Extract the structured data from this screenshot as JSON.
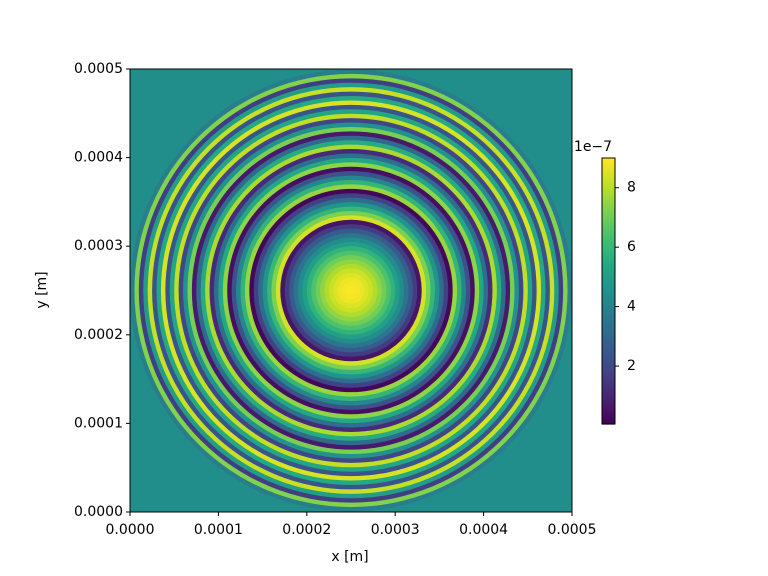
{
  "chart_data": {
    "type": "heatmap",
    "xlabel": "x [m]",
    "ylabel": "y [m]",
    "xlim": [
      0,
      0.0005
    ],
    "ylim": [
      0,
      0.0005
    ],
    "xticks": [
      {
        "value": 0,
        "label": "0.0000"
      },
      {
        "value": 0.0001,
        "label": "0.0001"
      },
      {
        "value": 0.0002,
        "label": "0.0002"
      },
      {
        "value": 0.0003,
        "label": "0.0003"
      },
      {
        "value": 0.0004,
        "label": "0.0004"
      },
      {
        "value": 0.0005,
        "label": "0.0005"
      }
    ],
    "yticks": [
      {
        "value": 0,
        "label": "0.0000"
      },
      {
        "value": 0.0001,
        "label": "0.0001"
      },
      {
        "value": 0.0002,
        "label": "0.0002"
      },
      {
        "value": 0.0003,
        "label": "0.0003"
      },
      {
        "value": 0.0004,
        "label": "0.0004"
      },
      {
        "value": 0.0005,
        "label": "0.0005"
      }
    ],
    "center": [
      0.00025,
      0.00025
    ],
    "colormap": "viridis",
    "clim": [
      5e-09,
      9e-07
    ],
    "colorbar_offset": "1e−7",
    "colorbar_ticks": [
      {
        "value": 2e-07,
        "label": "2"
      },
      {
        "value": 4e-07,
        "label": "4"
      },
      {
        "value": 6e-07,
        "label": "6"
      },
      {
        "value": 8e-07,
        "label": "8"
      }
    ],
    "background_value": 4.4e-07,
    "r": [
      5e-06,
      1e-05,
      1.5e-05,
      2e-05,
      2.5e-05,
      3e-05,
      3.5e-05,
      4e-05,
      4.5e-05,
      5e-05,
      5.5e-05,
      6e-05,
      6.5e-05,
      7e-05,
      7.5e-05,
      8e-05,
      8.5e-05,
      9e-05,
      9.5e-05,
      0.0001,
      0.000105,
      0.00011,
      0.000115,
      0.00012,
      0.000125,
      0.00013,
      0.000135,
      0.00014,
      0.000145,
      0.00015,
      0.000155,
      0.00016,
      0.000165,
      0.00017,
      0.000175,
      0.00018,
      0.000185,
      0.00019,
      0.000195,
      0.0002,
      0.000205,
      0.00021,
      0.000215,
      0.00022,
      0.000225,
      0.00023,
      0.000235,
      0.00024,
      0.000245,
      0.00025
    ],
    "values": [
      8.99e-07,
      8.92e-07,
      8.78e-07,
      8.57e-07,
      8.29e-07,
      7.94e-07,
      7.51e-07,
      7.02e-07,
      6.46e-07,
      5.83e-07,
      5.12e-07,
      4.35e-07,
      3.51e-07,
      2.59e-07,
      1.61e-07,
      5.5e-08,
      8.43e-07,
      7.23e-07,
      5.97e-07,
      4.63e-07,
      3.23e-07,
      1.75e-07,
      2e-08,
      7.59e-07,
      5.9e-07,
      4.14e-07,
      2.31e-07,
      4.1e-08,
      7.44e-07,
      5.41e-07,
      3.3e-07,
      1.12e-07,
      7.87e-07,
      5.55e-07,
      3.16e-07,
      6.9e-08,
      7.16e-07,
      4.56e-07,
      1.89e-07,
      8.15e-07,
      5.34e-07,
      2.45e-07,
      8.5e-07,
      5.48e-07,
      2.38e-07,
      8.22e-07,
      4.98e-07,
      1.68e-07,
      7.3e-07,
      3.86e-07
    ]
  }
}
